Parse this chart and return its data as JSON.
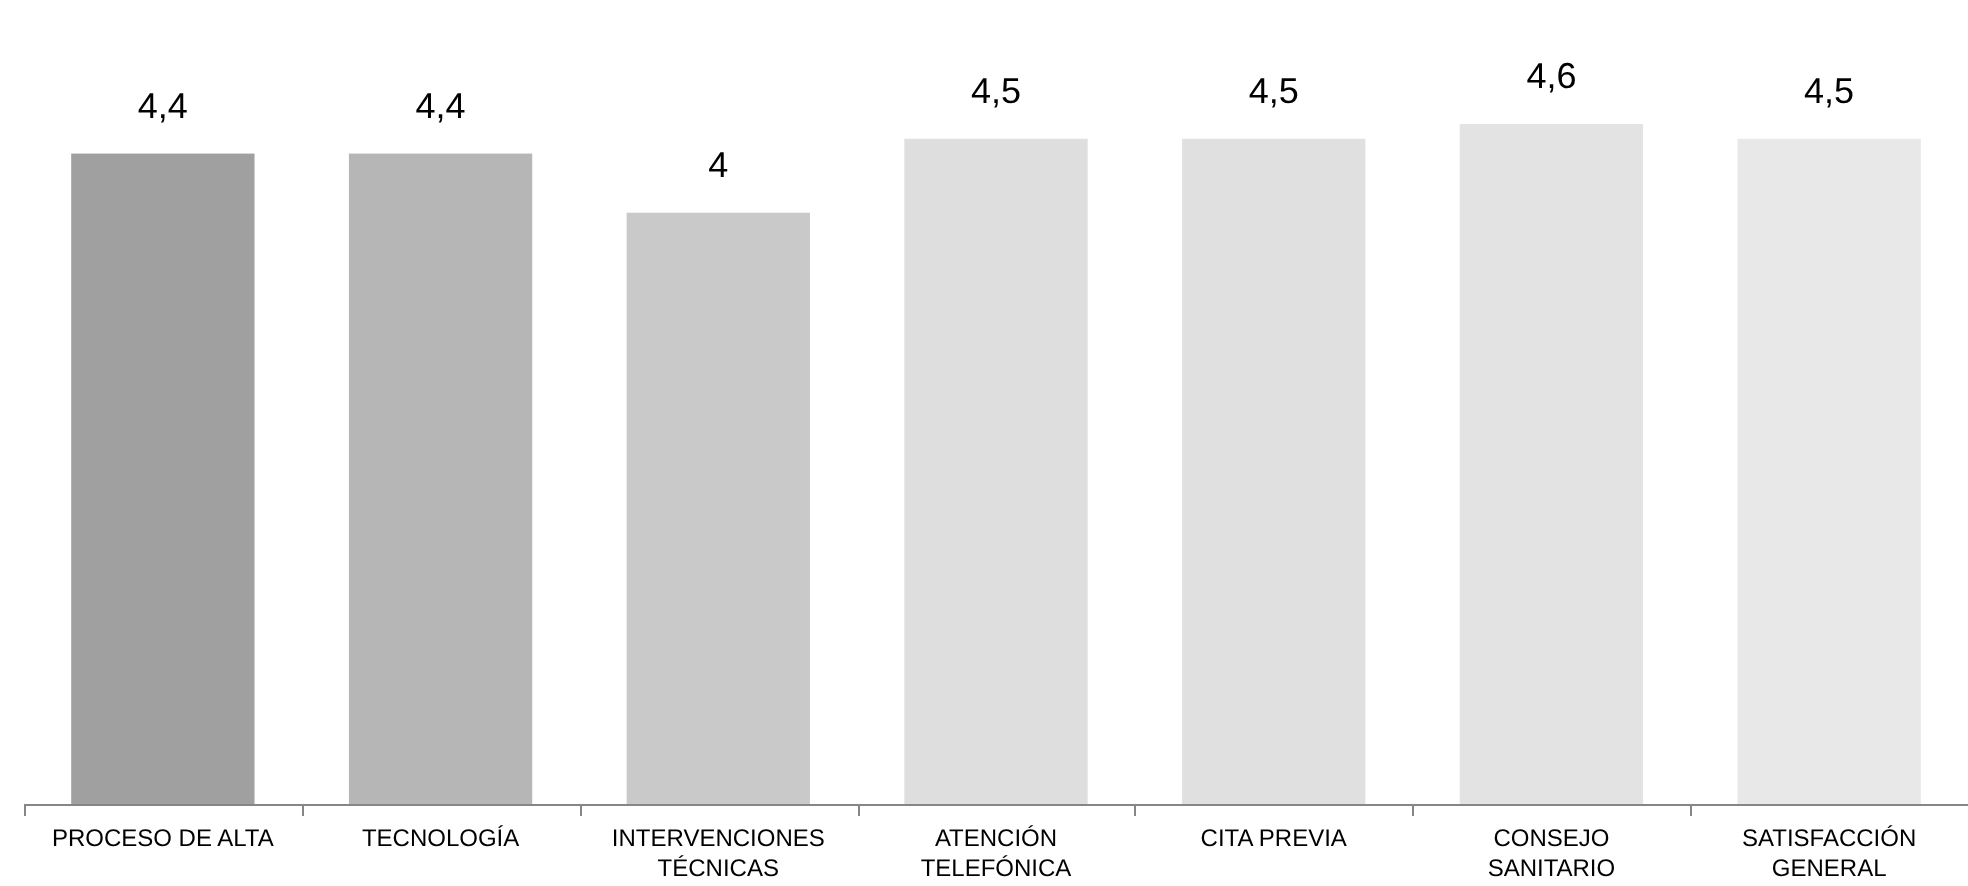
{
  "chart_data": {
    "type": "bar",
    "categories": [
      "PROCESO DE ALTA",
      "TECNOLOGÍA",
      "INTERVENCIONES TÉCNICAS",
      "ATENCIÓN TELEFÓNICA",
      "CITA PREVIA",
      "CONSEJO SANITARIO",
      "SATISFACCIÓN GENERAL"
    ],
    "values": [
      4.4,
      4.4,
      4,
      4.5,
      4.5,
      4.6,
      4.5
    ],
    "value_labels": [
      "4,4",
      "4,4",
      "4",
      "4,5",
      "4,5",
      "4,6",
      "4,5"
    ],
    "colors": [
      "#a0a0a0",
      "#b6b6b6",
      "#c9c9c9",
      "#dedede",
      "#e0e0e0",
      "#e3e3e3",
      "#e8e8e8"
    ],
    "tick_labels": "x"
  }
}
